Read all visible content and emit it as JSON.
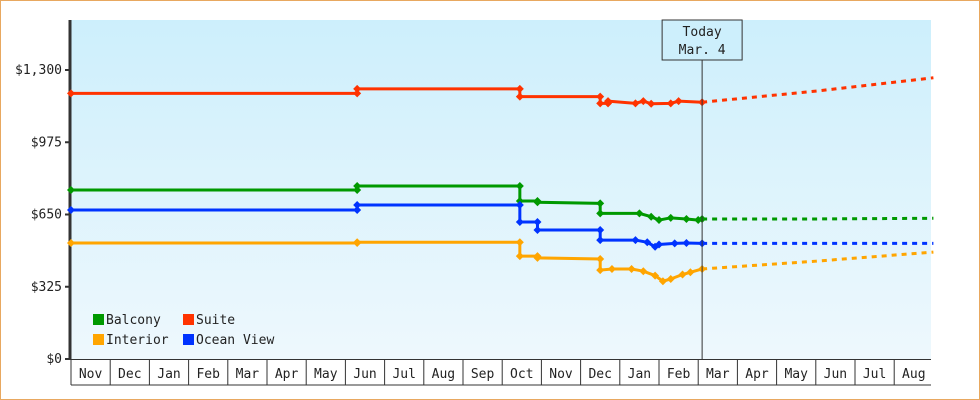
{
  "chart_data": {
    "type": "line",
    "title": "",
    "xlabel": "",
    "ylabel": "",
    "ylim": [
      0,
      1300
    ],
    "y_ticks": [
      "$0",
      "$325",
      "$650",
      "$975",
      "$1,300"
    ],
    "y_tick_values": [
      0,
      325,
      650,
      975,
      1300
    ],
    "x_ticks": [
      "Nov",
      "Dec",
      "Jan",
      "Feb",
      "Mar",
      "Apr",
      "May",
      "Jun",
      "Jul",
      "Aug",
      "Sep",
      "Oct",
      "Nov",
      "Dec",
      "Jan",
      "Feb",
      "Mar",
      "Apr",
      "May",
      "Jun",
      "Jul",
      "Aug"
    ],
    "today_marker": {
      "line1": "Today",
      "line2": "Mar. 4",
      "month_index": 16.1
    },
    "legend": [
      {
        "name": "Balcony",
        "color": "#009900"
      },
      {
        "name": "Suite",
        "color": "#ff3300"
      },
      {
        "name": "Interior",
        "color": "#ffa500"
      },
      {
        "name": "Ocean View",
        "color": "#0033ff"
      }
    ],
    "series": [
      {
        "name": "Suite",
        "color": "#ff3300",
        "history": [
          [
            0,
            1195
          ],
          [
            7.3,
            1195
          ],
          [
            7.3,
            1215
          ],
          [
            11.45,
            1215
          ],
          [
            11.45,
            1180
          ],
          [
            13.5,
            1180
          ],
          [
            13.5,
            1150
          ],
          [
            13.7,
            1150
          ],
          [
            13.7,
            1160
          ],
          [
            14.4,
            1150
          ],
          [
            14.6,
            1160
          ],
          [
            14.8,
            1148
          ],
          [
            15.3,
            1150
          ],
          [
            15.5,
            1160
          ],
          [
            16.1,
            1155
          ]
        ],
        "forecast": [
          [
            16.1,
            1155
          ],
          [
            19,
            1205
          ],
          [
            22,
            1265
          ]
        ]
      },
      {
        "name": "Balcony",
        "color": "#009900",
        "history": [
          [
            0,
            760
          ],
          [
            7.3,
            760
          ],
          [
            7.3,
            778
          ],
          [
            11.45,
            778
          ],
          [
            11.45,
            711
          ],
          [
            11.9,
            711
          ],
          [
            11.9,
            705
          ],
          [
            13.5,
            700
          ],
          [
            13.5,
            655
          ],
          [
            14.5,
            655
          ],
          [
            14.8,
            640
          ],
          [
            15.0,
            625
          ],
          [
            15.3,
            635
          ],
          [
            15.7,
            630
          ],
          [
            16.0,
            625
          ],
          [
            16.1,
            630
          ]
        ],
        "forecast": [
          [
            16.1,
            630
          ],
          [
            19,
            630
          ],
          [
            22,
            633
          ]
        ]
      },
      {
        "name": "Ocean View",
        "color": "#0033ff",
        "history": [
          [
            0,
            670
          ],
          [
            7.3,
            670
          ],
          [
            7.3,
            693
          ],
          [
            11.45,
            693
          ],
          [
            11.45,
            616
          ],
          [
            11.9,
            616
          ],
          [
            11.9,
            580
          ],
          [
            13.5,
            580
          ],
          [
            13.5,
            535
          ],
          [
            14.4,
            535
          ],
          [
            14.7,
            525
          ],
          [
            14.9,
            505
          ],
          [
            15.0,
            515
          ],
          [
            15.4,
            520
          ],
          [
            15.7,
            522
          ],
          [
            16.1,
            520
          ]
        ],
        "forecast": [
          [
            16.1,
            520
          ],
          [
            19,
            520
          ],
          [
            22,
            520
          ]
        ]
      },
      {
        "name": "Interior",
        "color": "#ffa500",
        "history": [
          [
            0,
            522
          ],
          [
            7.3,
            522
          ],
          [
            7.3,
            525
          ],
          [
            11.45,
            525
          ],
          [
            11.45,
            463
          ],
          [
            11.9,
            463
          ],
          [
            11.9,
            455
          ],
          [
            13.5,
            450
          ],
          [
            13.5,
            400
          ],
          [
            13.8,
            405
          ],
          [
            14.3,
            405
          ],
          [
            14.6,
            395
          ],
          [
            14.9,
            375
          ],
          [
            15.1,
            350
          ],
          [
            15.3,
            360
          ],
          [
            15.6,
            380
          ],
          [
            15.8,
            390
          ],
          [
            16.1,
            405
          ]
        ],
        "forecast": [
          [
            16.1,
            405
          ],
          [
            19,
            440
          ],
          [
            22,
            481
          ]
        ]
      }
    ]
  }
}
